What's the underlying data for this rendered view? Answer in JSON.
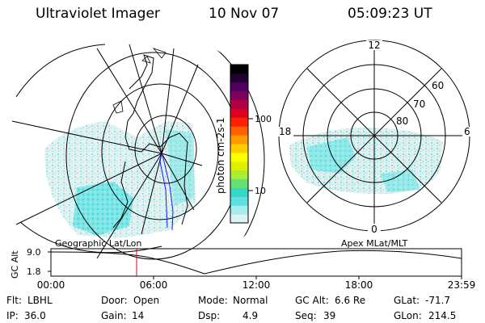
{
  "header": {
    "title": "Ultraviolet Imager",
    "date": "10 Nov 07",
    "time": "05:09:23 UT"
  },
  "colorbar": {
    "unit_label": "photon cm-2s-1",
    "ticks": [
      {
        "value": 100,
        "label": "100"
      },
      {
        "value": 10,
        "label": "10"
      }
    ],
    "colors": [
      "#d9f3f3",
      "#a6ecec",
      "#5fdfdf",
      "#33d9c6",
      "#66e070",
      "#aaee33",
      "#ddf000",
      "#ffff00",
      "#ffcc00",
      "#ff9900",
      "#ff6000",
      "#ff2000",
      "#e00020",
      "#b00040",
      "#800060",
      "#500060",
      "#200030",
      "#000000"
    ]
  },
  "geo_map": {
    "label": "Geographic Lat/Lon"
  },
  "polar_map": {
    "label": "Apex MLat/MLT",
    "mlt_labels": {
      "top": "12",
      "bottom": "0",
      "left": "18",
      "right": "6"
    },
    "lat_labels": [
      "60",
      "70",
      "80"
    ]
  },
  "altitude_plot": {
    "ylabel": "GC Alt",
    "yticks": [
      "9.0",
      "1.8"
    ],
    "xticks": [
      "00:00",
      "06:00",
      "12:00",
      "18:00",
      "23:59"
    ],
    "marker_time": "05:09:23"
  },
  "info": {
    "row1": [
      {
        "label": "Flt:",
        "value": "LBHL"
      },
      {
        "label": "Door:",
        "value": "Open"
      },
      {
        "label": "Mode:",
        "value": "Normal"
      },
      {
        "label": "GC Alt:",
        "value": "6.6 Re"
      },
      {
        "label": "GLat:",
        "value": "-71.7"
      }
    ],
    "row2": [
      {
        "label": "IP:",
        "value": "36.0"
      },
      {
        "label": "Gain:",
        "value": "14"
      },
      {
        "label": "Dsp:",
        "value": "4.9"
      },
      {
        "label": "Seq:",
        "value": "39"
      },
      {
        "label": "GLon:",
        "value": "214.5"
      }
    ]
  }
}
